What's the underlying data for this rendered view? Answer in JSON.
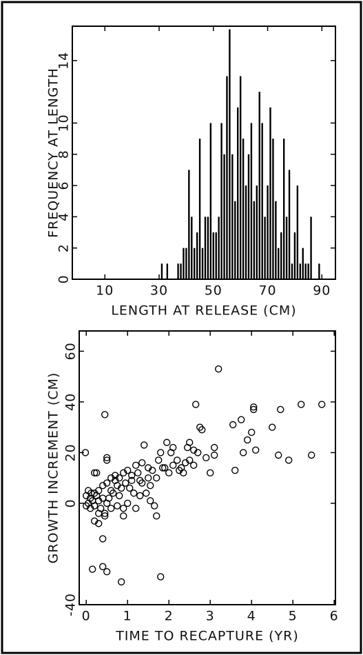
{
  "chart_data": [
    {
      "type": "bar",
      "xlabel": "LENGTH AT RELEASE (CM)",
      "ylabel": "FREQUENCY AT LENGTH",
      "color": "#000000",
      "x": [
        31,
        33,
        37,
        38,
        39,
        40,
        41,
        42,
        43,
        44,
        45,
        46,
        47,
        48,
        49,
        50,
        51,
        52,
        53,
        54,
        55,
        56,
        57,
        58,
        59,
        60,
        61,
        62,
        63,
        64,
        65,
        66,
        67,
        68,
        69,
        70,
        71,
        72,
        73,
        74,
        75,
        76,
        77,
        78,
        79,
        80,
        81,
        82,
        83,
        84,
        85,
        86,
        89
      ],
      "values": [
        1,
        1,
        1,
        1,
        2,
        2,
        7,
        4,
        2,
        3,
        9,
        2,
        4,
        4,
        10,
        3,
        3,
        4,
        10,
        8,
        13,
        16,
        8,
        5,
        11,
        13,
        9,
        6,
        8,
        10,
        5,
        6,
        12,
        10,
        4,
        6,
        11,
        9,
        5,
        2,
        3,
        9,
        4,
        7,
        1,
        3,
        6,
        1,
        2,
        1,
        1,
        4,
        1
      ],
      "xlim": [
        -2,
        95
      ],
      "xticks": [
        10,
        30,
        50,
        70,
        90
      ],
      "ylim": [
        0,
        16.2
      ],
      "yticks": [
        0,
        2,
        4,
        6,
        8,
        10,
        14
      ]
    },
    {
      "type": "scatter",
      "xlabel": "TIME TO RECAPTURE (YR)",
      "ylabel": "GROWTH INCREMENT (CM)",
      "color": "#000000",
      "x": [
        -0.02,
        0.2,
        0.25,
        0.45,
        0.5,
        0.5,
        0.15,
        0.4,
        0.5,
        0.85,
        1.8,
        0.4,
        0.45,
        1.7,
        0.2,
        0.3,
        3.2,
        2.65,
        4.05,
        4.05,
        4.7,
        5.2,
        5.7,
        3.55,
        3.75,
        4.5,
        3.9,
        4.0,
        3.8,
        4.1,
        4.65,
        4.9,
        5.45,
        3.6,
        3.0,
        2.8,
        2.75,
        2.5,
        2.45,
        2.6,
        3.1,
        3.1,
        2.9,
        2.7,
        2.4,
        2.35,
        2.1,
        2.05,
        1.95,
        2.2,
        2.25,
        2.0,
        1.8,
        1.75,
        1.85,
        1.6,
        1.5,
        1.4,
        1.35,
        1.2,
        1.1,
        1.3,
        1.45,
        1.55,
        1.65,
        1.0,
        1.2,
        0.9,
        0.8,
        0.75,
        0.7,
        0.6,
        0.55,
        0.5,
        0.45,
        0.35,
        0.3,
        0.25,
        0.2,
        0.15,
        0.1,
        0.05,
        0.0,
        0.0,
        0.05,
        0.1,
        0.12,
        0.3,
        0.4,
        0.5,
        0.6,
        0.7,
        0.8,
        0.9,
        1.0,
        1.1,
        1.25,
        1.5,
        1.7,
        1.9,
        2.1,
        2.3,
        2.5,
        2.6,
        0.95,
        0.85,
        0.65,
        1.05,
        1.35,
        1.55,
        0.2,
        0.3,
        0.4,
        0.6,
        0.75,
        0.9,
        1.15,
        1.3
      ],
      "y": [
        20,
        12,
        12,
        35,
        17,
        18,
        -26,
        -25,
        -27,
        -31,
        -29,
        -14,
        -4,
        -5,
        -7,
        -8,
        53,
        39,
        37,
        38,
        37,
        39,
        39,
        31,
        33,
        30,
        25,
        28,
        20,
        21,
        19,
        17,
        19,
        13,
        12,
        29,
        30,
        24,
        22,
        21,
        22,
        19,
        18,
        20,
        16,
        12,
        22,
        20,
        24,
        17,
        13,
        12,
        20,
        17,
        14,
        13,
        14,
        23,
        16,
        15,
        11,
        9,
        4,
        1,
        -1,
        0,
        -2,
        -5,
        3,
        7,
        9,
        5,
        2,
        0,
        -5,
        -2,
        1,
        3,
        4,
        1,
        2,
        0,
        -1,
        3,
        5,
        -2,
        4,
        5,
        7,
        8,
        10,
        11,
        10,
        12,
        13,
        9,
        12,
        10,
        10,
        14,
        15,
        14,
        17,
        15,
        8,
        6,
        4,
        6,
        8,
        7,
        -1,
        -4,
        2,
        -2,
        -1,
        -2,
        4,
        3
      ],
      "xlim": [
        -0.17,
        6.03
      ],
      "xticks": [
        0,
        1,
        2,
        3,
        4,
        5,
        6
      ],
      "ylim": [
        -40,
        68
      ],
      "yticks": [
        -40,
        0,
        20,
        40,
        60
      ]
    }
  ]
}
